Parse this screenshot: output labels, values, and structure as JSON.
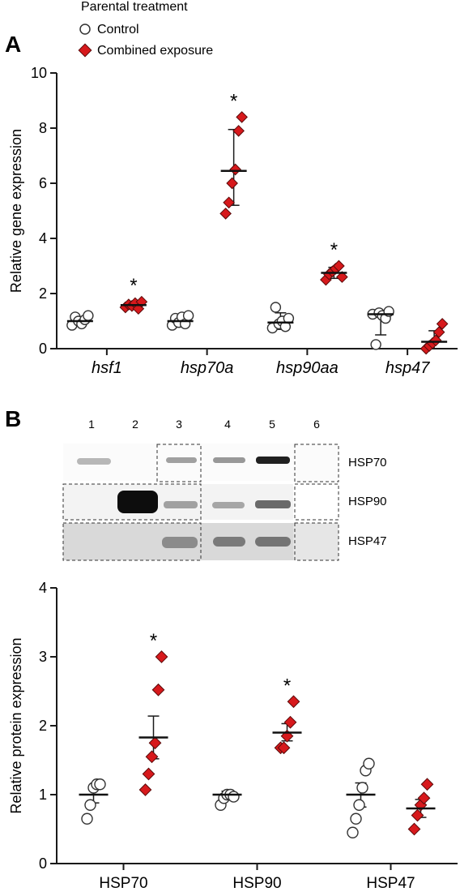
{
  "legend": {
    "title": "Parental treatment",
    "items": [
      {
        "label": "Control",
        "marker": "circle"
      },
      {
        "label": "Combined exposure",
        "marker": "diamond"
      }
    ]
  },
  "colors": {
    "control": "#ffffff",
    "control_edge": "#333333",
    "treated": "#d7191c",
    "treated_edge": "#5a0a0a",
    "axis": "#1a1a1a"
  },
  "panels": {
    "a": "A",
    "b": "B"
  },
  "blot": {
    "lanes": [
      "1",
      "2",
      "3",
      "4",
      "5",
      "6"
    ],
    "rows": [
      "HSP70",
      "HSP90",
      "HSP47"
    ]
  },
  "chart_data": [
    {
      "type": "scatter",
      "panel": "A",
      "ylabel": "Relative gene expression",
      "ylim": [
        0,
        10
      ],
      "yticks": [
        "0",
        "2",
        "4",
        "6",
        "8",
        "10"
      ],
      "categories": [
        "hsf1",
        "hsp70a",
        "hsp90aa",
        "hsp47"
      ],
      "series": [
        {
          "group": "control",
          "points": [
            [
              0.85,
              1.15,
              1.0,
              0.9,
              1.05,
              1.2
            ],
            [
              0.85,
              1.1,
              0.95,
              1.15,
              0.9,
              1.2
            ],
            [
              0.75,
              1.5,
              0.9,
              1.0,
              0.8,
              1.1
            ],
            [
              1.25,
              0.15,
              1.3,
              1.2,
              1.1,
              1.35
            ]
          ],
          "mean": [
            1.0,
            1.0,
            0.95,
            1.25
          ],
          "err": [
            [
              0.85,
              1.15
            ],
            [
              0.85,
              1.15
            ],
            [
              0.7,
              1.3
            ],
            [
              0.5,
              1.35
            ]
          ]
        },
        {
          "group": "treated",
          "points": [
            [
              1.5,
              1.6,
              1.55,
              1.65,
              1.45,
              1.7
            ],
            [
              4.9,
              5.3,
              6.0,
              6.5,
              7.9,
              8.4
            ],
            [
              2.5,
              2.7,
              2.8,
              2.9,
              3.0,
              2.6
            ],
            [
              0.0,
              0.1,
              0.2,
              0.3,
              0.6,
              0.9
            ]
          ],
          "mean": [
            1.58,
            6.45,
            2.75,
            0.25
          ],
          "err": [
            [
              1.48,
              1.68
            ],
            [
              5.2,
              7.95
            ],
            [
              2.55,
              2.95
            ],
            [
              0.0,
              0.65
            ]
          ]
        }
      ],
      "significance": [
        "*",
        "*",
        "*",
        ""
      ]
    },
    {
      "type": "scatter",
      "panel": "B",
      "ylabel": "Relative protein expression",
      "ylim": [
        0,
        4
      ],
      "yticks": [
        "0",
        "1",
        "2",
        "3",
        "4"
      ],
      "categories": [
        "HSP70",
        "HSP90",
        "HSP47"
      ],
      "series": [
        {
          "group": "control",
          "points": [
            [
              0.65,
              0.85,
              1.1,
              1.15,
              1.15
            ],
            [
              0.85,
              0.95,
              1.0,
              1.0,
              0.97
            ],
            [
              0.45,
              0.65,
              0.85,
              1.1,
              1.35,
              1.45
            ]
          ],
          "mean": [
            1.0,
            1.0,
            1.0
          ],
          "err": [
            [
              0.88,
              1.1
            ],
            [
              0.95,
              1.05
            ],
            [
              0.82,
              1.17
            ]
          ]
        },
        {
          "group": "treated",
          "points": [
            [
              1.07,
              1.3,
              1.55,
              1.75,
              2.52,
              3.0
            ],
            [
              1.68,
              1.68,
              1.85,
              2.05,
              2.35
            ],
            [
              0.5,
              0.7,
              0.85,
              0.95,
              1.15
            ]
          ],
          "mean": [
            1.83,
            1.9,
            0.8
          ],
          "err": [
            [
              1.52,
              2.14
            ],
            [
              1.78,
              2.03
            ],
            [
              0.67,
              0.93
            ]
          ]
        }
      ],
      "significance": [
        "*",
        "*",
        ""
      ]
    }
  ]
}
